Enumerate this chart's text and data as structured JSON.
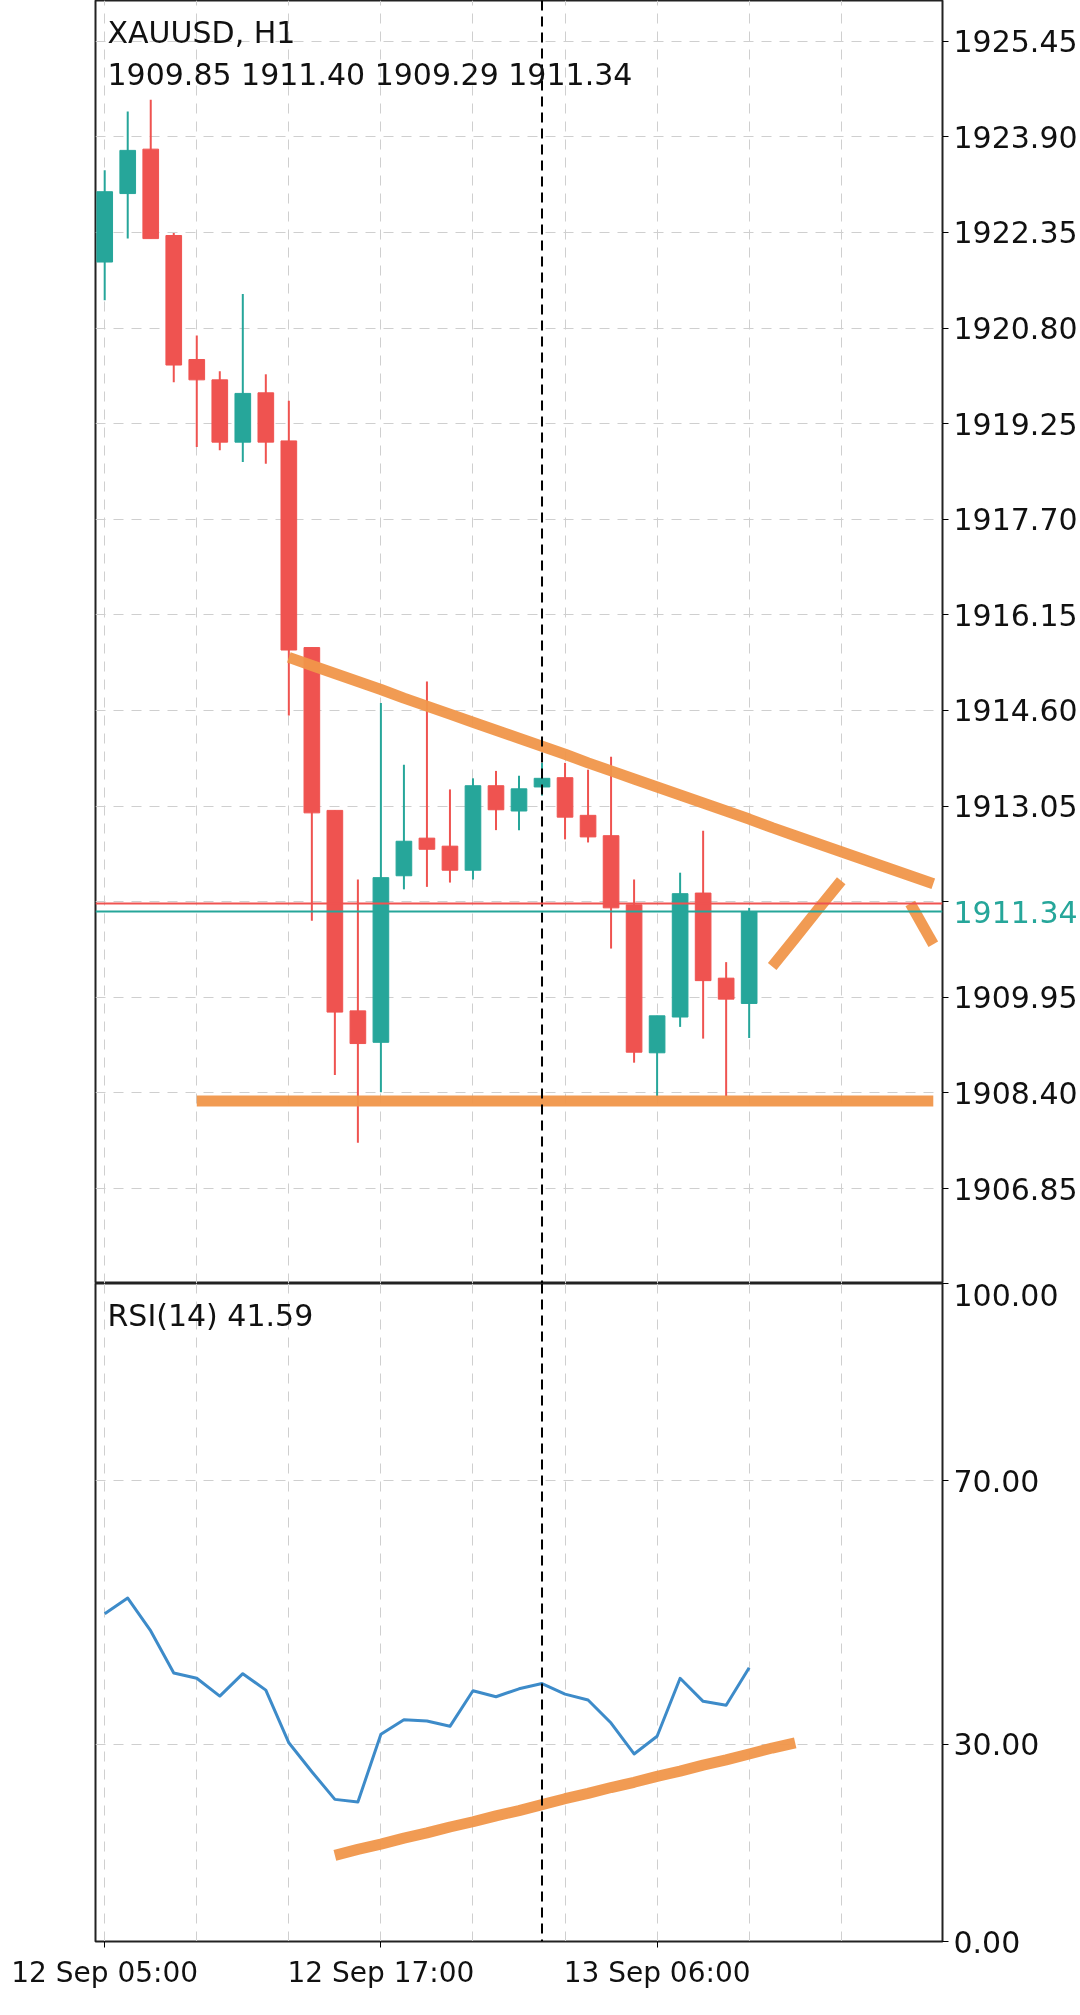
{
  "chart_data": [
    {
      "type": "candlestick",
      "title": "XAUUSD, H1",
      "subtitle": "1909.85 1911.40 1909.29 1911.34",
      "categories": [
        null,
        null,
        null,
        null,
        null,
        null,
        null,
        null,
        null,
        null,
        null,
        null,
        null,
        null,
        null,
        null,
        null,
        null,
        null,
        null,
        null,
        null,
        null,
        null,
        null,
        null,
        null,
        null,
        null,
        null,
        null,
        null,
        null,
        null,
        null,
        null,
        null
      ],
      "ohlc": [
        [
          1921.87,
          1923.36,
          1921.25,
          1923.01
        ],
        [
          1922.98,
          1924.31,
          1922.25,
          1923.68
        ],
        [
          1923.7,
          1924.5,
          1922.25,
          1922.25
        ],
        [
          1922.3,
          1922.34,
          1919.92,
          1920.2
        ],
        [
          1920.29,
          1920.68,
          1918.87,
          1919.96
        ],
        [
          1919.96,
          1920.1,
          1918.82,
          1918.95
        ],
        [
          1918.95,
          1921.35,
          1918.63,
          1919.74
        ],
        [
          1919.75,
          1920.05,
          1918.6,
          1918.95
        ],
        [
          1918.97,
          1919.62,
          1914.52,
          1915.58
        ],
        [
          1915.62,
          1915.62,
          1911.19,
          1912.94
        ],
        [
          1912.98,
          1912.98,
          1908.69,
          1909.71
        ],
        [
          1909.73,
          1911.86,
          1907.59,
          1909.2
        ],
        [
          1909.22,
          1914.72,
          1908.41,
          1911.89
        ],
        [
          1911.92,
          1913.72,
          1911.7,
          1912.48
        ],
        [
          1912.53,
          1915.07,
          1911.74,
          1912.35
        ],
        [
          1912.4,
          1913.32,
          1911.81,
          1912.01
        ],
        [
          1912.01,
          1913.5,
          1911.86,
          1913.38
        ],
        [
          1913.38,
          1913.62,
          1912.66,
          1912.99
        ],
        [
          1912.97,
          1913.54,
          1912.66,
          1913.33
        ],
        [
          1913.36,
          1913.75,
          1913.22,
          1913.5
        ],
        [
          1913.51,
          1913.75,
          1912.51,
          1912.87
        ],
        [
          1912.9,
          1913.64,
          1912.46,
          1912.55
        ],
        [
          1912.57,
          1913.85,
          1910.74,
          1911.4
        ],
        [
          1911.45,
          1911.86,
          1908.89,
          1909.06
        ],
        [
          1909.05,
          1909.65,
          1908.35,
          1909.65
        ],
        [
          1909.63,
          1911.97,
          1909.47,
          1911.63
        ],
        [
          1911.64,
          1912.65,
          1909.28,
          1910.22
        ],
        [
          1910.26,
          1910.52,
          1908.35,
          1909.92
        ],
        [
          1909.85,
          1911.4,
          1909.29,
          1911.34
        ],
        null,
        null,
        null,
        null,
        null,
        null,
        null,
        null
      ],
      "colors": [
        "#26a69a",
        "#26a69a",
        "#ef5350",
        "#ef5350",
        "#ef5350",
        "#ef5350",
        "#26a69a",
        "#ef5350",
        "#ef5350",
        "#ef5350",
        "#ef5350",
        "#ef5350",
        "#26a69a",
        "#26a69a",
        "#ef5350",
        "#ef5350",
        "#26a69a",
        "#ef5350",
        "#26a69a",
        "#26a69a",
        "#ef5350",
        "#ef5350",
        "#ef5350",
        "#ef5350",
        "#26a69a",
        "#26a69a",
        "#ef5350",
        "#ef5350",
        "#26a69a",
        null,
        null,
        null,
        null,
        null,
        null,
        null,
        null
      ],
      "series": [
        {
          "type": "line",
          "color": "#f0964a",
          "values": [
            null,
            null,
            null,
            null,
            null,
            null,
            null,
            null,
            1915.46,
            1915.33,
            1915.2,
            1915.07,
            1914.94,
            1914.8,
            1914.67,
            1914.54,
            1914.41,
            1914.28,
            1914.15,
            1914.02,
            1913.89,
            1913.75,
            1913.62,
            1913.49,
            1913.36,
            1913.23,
            1913.1,
            1912.97,
            1912.84,
            1912.7,
            1912.57,
            1912.44,
            1912.31,
            1912.18,
            1912.05,
            1911.92,
            1911.79
          ]
        },
        {
          "type": "line",
          "color": "#f0964a",
          "values": [
            null,
            null,
            null,
            null,
            1908.27,
            1908.27,
            1908.27,
            1908.27,
            1908.27,
            1908.27,
            1908.27,
            1908.27,
            1908.27,
            1908.27,
            1908.27,
            1908.27,
            1908.27,
            1908.27,
            1908.27,
            1908.27,
            1908.27,
            1908.27,
            1908.27,
            1908.27,
            1908.27,
            1908.27,
            1908.27,
            1908.27,
            1908.27,
            1908.27,
            1908.27,
            1908.27,
            1908.27,
            1908.27,
            1908.27,
            1908.27,
            1908.27
          ]
        },
        {
          "type": "line",
          "color": "#f0964a",
          "values": [
            null,
            null,
            null,
            null,
            null,
            null,
            null,
            null,
            null,
            null,
            null,
            null,
            null,
            null,
            null,
            null,
            null,
            null,
            null,
            null,
            null,
            null,
            null,
            null,
            null,
            null,
            null,
            null,
            null,
            1910.45,
            1910.91,
            1911.38,
            1911.84,
            null,
            null,
            null,
            null
          ]
        },
        {
          "type": "line",
          "color": "#f0964a",
          "values": [
            null,
            null,
            null,
            null,
            null,
            null,
            null,
            null,
            null,
            null,
            null,
            null,
            null,
            null,
            null,
            null,
            null,
            null,
            null,
            null,
            null,
            null,
            null,
            null,
            null,
            null,
            null,
            null,
            null,
            null,
            null,
            null,
            null,
            null,
            null,
            1911.47,
            1910.81
          ]
        }
      ],
      "ylim": [
        1905.31,
        1926.11
      ],
      "yticks": [
        {
          "value": 1925.45,
          "label": "1925.45"
        },
        {
          "value": 1923.9,
          "label": "1923.90"
        },
        {
          "value": 1922.35,
          "label": "1922.35"
        },
        {
          "value": 1920.8,
          "label": "1920.80"
        },
        {
          "value": 1919.25,
          "label": "1919.25"
        },
        {
          "value": 1917.7,
          "label": "1917.70"
        },
        {
          "value": 1916.15,
          "label": "1916.15"
        },
        {
          "value": 1914.6,
          "label": "1914.60"
        },
        {
          "value": 1913.05,
          "label": "1913.05"
        },
        {
          "value": 1911.5,
          "label": null
        },
        {
          "value": 1909.95,
          "label": "1909.95"
        },
        {
          "value": 1908.4,
          "label": "1908.40"
        },
        {
          "value": 1906.85,
          "label": "1906.85"
        }
      ],
      "tick_labels": "y",
      "grid": true,
      "ref_lines": [
        {
          "axis": "y",
          "value": 1911.47,
          "color": "#ef5350"
        },
        {
          "axis": "y",
          "value": 1911.34,
          "label": "1911.34",
          "color": "#26a69a"
        }
      ]
    },
    {
      "type": "line",
      "title": "RSI(14) 41.59",
      "color": "#3d8bc9",
      "categories": [
        "12 Sep 05:00",
        null,
        null,
        null,
        null,
        null,
        null,
        null,
        null,
        null,
        null,
        null,
        "12 Sep 17:00",
        null,
        null,
        null,
        null,
        null,
        null,
        null,
        null,
        null,
        null,
        null,
        "13 Sep 06:00",
        null,
        null,
        null,
        null,
        null,
        null,
        null,
        null,
        null,
        null,
        null,
        null
      ],
      "values": [
        49.8,
        52.2,
        47.2,
        40.8,
        40.0,
        37.3,
        40.7,
        38.2,
        30.2,
        25.8,
        21.6,
        21.2,
        31.5,
        33.7,
        33.5,
        32.7,
        38.1,
        37.2,
        38.4,
        39.2,
        37.6,
        36.7,
        33.2,
        28.5,
        31.2,
        40.0,
        36.5,
        35.9,
        41.59,
        null,
        null,
        null,
        null,
        null,
        null,
        null,
        null
      ],
      "series": [
        {
          "type": "line",
          "color": "#f0964a",
          "values": [
            null,
            null,
            null,
            null,
            null,
            null,
            null,
            null,
            null,
            null,
            13.1,
            14.0,
            14.8,
            15.7,
            16.5,
            17.4,
            18.2,
            19.1,
            19.9,
            20.8,
            21.7,
            22.5,
            23.4,
            24.2,
            25.1,
            25.9,
            26.8,
            27.6,
            28.5,
            29.4,
            30.2,
            null,
            null,
            null,
            null,
            null,
            null
          ]
        }
      ],
      "ylim": [
        0,
        100
      ],
      "yticks": [
        {
          "value": 0,
          "label": "0.00"
        },
        {
          "value": 30,
          "label": "30.00"
        },
        {
          "value": 70,
          "label": "70.00"
        },
        {
          "value": 100,
          "label": "100.00"
        }
      ],
      "grid": true
    }
  ]
}
